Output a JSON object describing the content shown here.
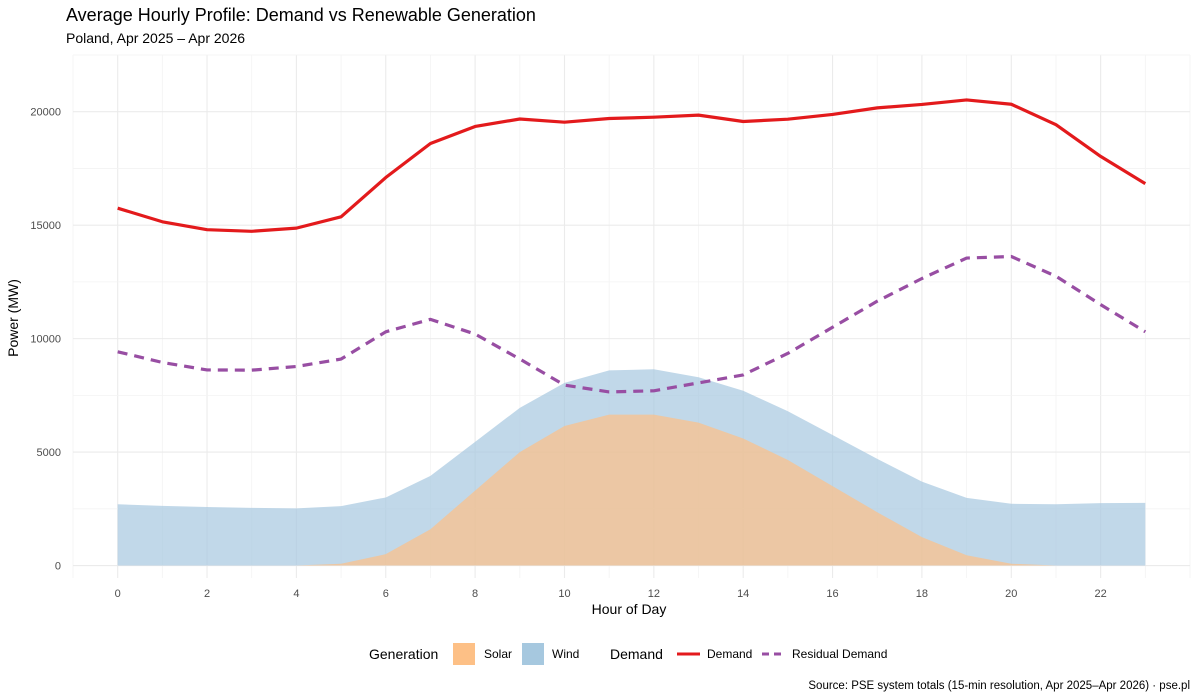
{
  "chart_data": {
    "type": "area",
    "title": "Average Hourly Profile: Demand vs Renewable Generation",
    "subtitle": "Poland, Apr 2025 – Apr 2026",
    "xlabel": "Hour of Day",
    "ylabel": "Power (MW)",
    "caption": "Source: PSE system totals (15-min resolution, Apr 2025–Apr 2026) · pse.pl",
    "xlim": [
      -1,
      24
    ],
    "ylim": [
      -550,
      22500
    ],
    "x_ticks": [
      0,
      2,
      4,
      6,
      8,
      10,
      12,
      14,
      16,
      18,
      20,
      22
    ],
    "y_ticks": [
      0,
      5000,
      10000,
      15000,
      20000
    ],
    "grid": true,
    "x": [
      0,
      1,
      2,
      3,
      4,
      5,
      6,
      7,
      8,
      9,
      10,
      11,
      12,
      13,
      14,
      15,
      16,
      17,
      18,
      19,
      20,
      21,
      22,
      23
    ],
    "area_series": [
      {
        "name": "Solar",
        "color": "#fdc086",
        "values": [
          0,
          0,
          0,
          0,
          0,
          80,
          500,
          1600,
          3300,
          5000,
          6150,
          6650,
          6650,
          6300,
          5600,
          4650,
          3500,
          2350,
          1250,
          450,
          80,
          0,
          0,
          0
        ]
      },
      {
        "name": "Wind",
        "color": "#a6c8df",
        "values": [
          2700,
          2630,
          2580,
          2540,
          2520,
          2620,
          3000,
          3950,
          5450,
          6950,
          8050,
          8600,
          8650,
          8300,
          7700,
          6800,
          5750,
          4700,
          3700,
          2980,
          2720,
          2700,
          2750,
          2760
        ]
      }
    ],
    "line_series": [
      {
        "name": "Demand",
        "color": "#e31a1c",
        "dash": "solid",
        "values": [
          15750,
          15150,
          14800,
          14730,
          14870,
          15370,
          17100,
          18600,
          19350,
          19680,
          19540,
          19700,
          19760,
          19850,
          19570,
          19670,
          19880,
          20170,
          20320,
          20520,
          20330,
          19430,
          18030,
          16830
        ]
      },
      {
        "name": "Residual Demand",
        "color": "#984ea3",
        "dash": "dashed",
        "values": [
          9420,
          8950,
          8620,
          8610,
          8770,
          9100,
          10300,
          10850,
          10200,
          9100,
          7950,
          7650,
          7700,
          8050,
          8400,
          9350,
          10500,
          11650,
          12650,
          13550,
          13620,
          12750,
          11500,
          10300
        ]
      }
    ],
    "legend_position": "bottom",
    "legend": {
      "generation_title": "Generation",
      "demand_title": "Demand",
      "generation_items": [
        {
          "label": "Solar",
          "color": "#fdc086"
        },
        {
          "label": "Wind",
          "color": "#a6c8df"
        }
      ],
      "demand_items": [
        {
          "label": "Demand",
          "color": "#e31a1c",
          "dash": "solid"
        },
        {
          "label": "Residual Demand",
          "color": "#984ea3",
          "dash": "dashed"
        }
      ]
    }
  }
}
